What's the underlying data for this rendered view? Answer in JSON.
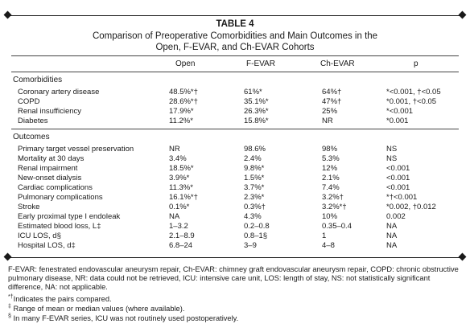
{
  "table": {
    "label": "TABLE 4",
    "caption_line1": "Comparison of Preoperative Comorbidities and Main Outcomes in the",
    "caption_line2": "Open, F-EVAR, and Ch-EVAR Cohorts",
    "columns": [
      "Open",
      "F-EVAR",
      "Ch-EVAR",
      "p"
    ],
    "sections": [
      {
        "heading": "Comorbidities",
        "rows": [
          {
            "label": "Coronary artery disease",
            "open": "48.5%*†",
            "fevar": "61%*",
            "chevar": "64%†",
            "p": "*<0.001, †<0.05"
          },
          {
            "label": "COPD",
            "open": "28.6%*†",
            "fevar": "35.1%*",
            "chevar": "47%†",
            "p": "*0.001, †<0.05"
          },
          {
            "label": "Renal insufficiency",
            "open": "17.9%*",
            "fevar": "26.3%*",
            "chevar": "25%",
            "p": "*<0.001"
          },
          {
            "label": "Diabetes",
            "open": "11.2%*",
            "fevar": "15.8%*",
            "chevar": "NR",
            "p": "*0.001"
          }
        ]
      },
      {
        "heading": "Outcomes",
        "rows": [
          {
            "label": "Primary target vessel preservation",
            "open": "NR",
            "fevar": "98.6%",
            "chevar": "98%",
            "p": "NS"
          },
          {
            "label": "Mortality at 30 days",
            "open": "3.4%",
            "fevar": "2.4%",
            "chevar": "5.3%",
            "p": "NS"
          },
          {
            "label": "Renal impairment",
            "open": "18.5%*",
            "fevar": "9.8%*",
            "chevar": "12%",
            "p": "<0.001"
          },
          {
            "label": "New-onset dialysis",
            "open": "3.9%*",
            "fevar": "1.5%*",
            "chevar": "2.1%",
            "p": "<0.001"
          },
          {
            "label": "Cardiac complications",
            "open": "11.3%*",
            "fevar": "3.7%*",
            "chevar": "7.4%",
            "p": "<0.001"
          },
          {
            "label": "Pulmonary complications",
            "open": "16.1%*†",
            "fevar": "2.3%*",
            "chevar": "3.2%†",
            "p": "*†<0.001"
          },
          {
            "label": "Stroke",
            "open": "0.1%*",
            "fevar": "0.3%†",
            "chevar": "3.2%*†",
            "p": "*0.002, †0.012"
          },
          {
            "label": "Early proximal type I endoleak",
            "open": "NA",
            "fevar": "4.3%",
            "chevar": "10%",
            "p": "0.002"
          },
          {
            "label": "Estimated blood loss, L‡",
            "open": "1–3.2",
            "fevar": "0.2–0.8",
            "chevar": "0.35–0.4",
            "p": "NA"
          },
          {
            "label": "ICU LOS, d§",
            "open": "2.1–8.9",
            "fevar": "0.8–1§",
            "chevar": "1",
            "p": "NA"
          },
          {
            "label": "Hospital LOS, d‡",
            "open": "6.8–24",
            "fevar": "3–9",
            "chevar": "4–8",
            "p": "NA"
          }
        ]
      }
    ]
  },
  "footnotes": {
    "abbreviations": "F-EVAR: fenestrated endovascular aneurysm repair, Ch-EVAR: chimney graft endovascular aneurysm repair, COPD: chronic obstructive pulmonary disease, NR: data could not be retrieved, ICU: intensive care unit, LOS: length of stay, NS: not statistically significant difference, NA: not applicable.",
    "notes": [
      {
        "symbol": "*†",
        "text": "Indicates the pairs compared."
      },
      {
        "symbol": "‡",
        "text": "Range of mean or median values (where available)."
      },
      {
        "symbol": "§",
        "text": "In many F-EVAR series, ICU was not routinely used postoperatively."
      }
    ]
  }
}
